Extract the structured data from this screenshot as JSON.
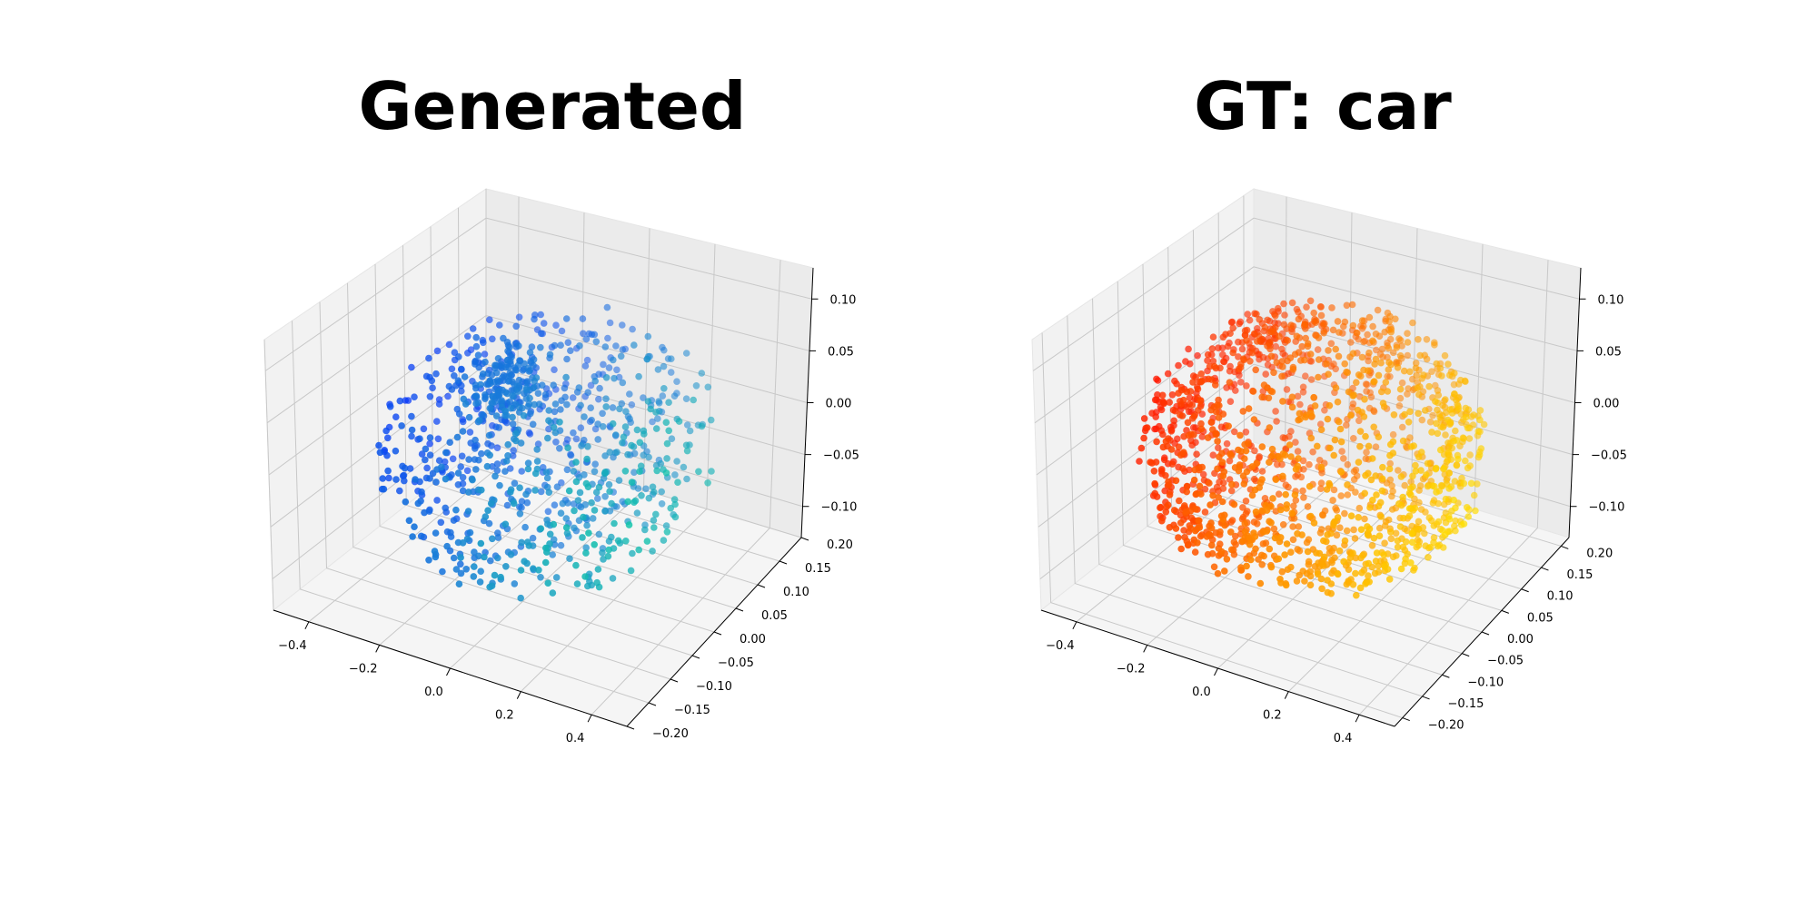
{
  "chart_data": [
    {
      "type": "scatter3d",
      "title": "Generated",
      "colormap": "winter",
      "point_colors": [
        "#0028ff",
        "#1f8fd0",
        "#00ff80"
      ],
      "point_count": 900,
      "xlim": [
        -0.5,
        0.5
      ],
      "ylim": [
        -0.2,
        0.2
      ],
      "zlim": [
        -0.13,
        0.13
      ],
      "x_ticks": [
        -0.4,
        -0.2,
        0.0,
        0.2,
        0.4
      ],
      "y_ticks": [
        -0.2,
        -0.15,
        -0.1,
        -0.05,
        0.0,
        0.05,
        0.1,
        0.15,
        0.2
      ],
      "z_ticks": [
        -0.1,
        -0.05,
        0.0,
        0.05,
        0.1
      ],
      "x_tick_labels": [
        "−0.4",
        "−0.2",
        "0.0",
        "0.2",
        "0.4"
      ],
      "y_tick_labels": [
        "−0.20",
        "−0.15",
        "−0.10",
        "−0.05",
        "0.00",
        "0.05",
        "0.10",
        "0.15",
        "0.20"
      ],
      "z_tick_labels": [
        "−0.10",
        "−0.05",
        "0.00",
        "0.05",
        "0.10"
      ],
      "point_cloud": {
        "shape": "ellipsoid",
        "center": [
          0.0,
          0.0,
          0.0
        ],
        "half_extent": [
          0.42,
          0.2,
          0.11
        ],
        "dense_cluster_center": [
          -0.05,
          -0.05,
          0.09
        ]
      },
      "grid": true
    },
    {
      "type": "scatter3d",
      "title": "GT: car",
      "colormap": "autumn",
      "point_colors": [
        "#ff0000",
        "#ff8000",
        "#ffff00"
      ],
      "point_count": 1500,
      "xlim": [
        -0.5,
        0.5
      ],
      "ylim": [
        -0.22,
        0.22
      ],
      "zlim": [
        -0.13,
        0.13
      ],
      "x_ticks": [
        -0.4,
        -0.2,
        0.0,
        0.2,
        0.4
      ],
      "y_ticks": [
        -0.2,
        -0.15,
        -0.1,
        -0.05,
        0.0,
        0.05,
        0.1,
        0.15,
        0.2
      ],
      "z_ticks": [
        -0.1,
        -0.05,
        0.0,
        0.05,
        0.1
      ],
      "x_tick_labels": [
        "−0.4",
        "−0.2",
        "0.0",
        "0.2",
        "0.4"
      ],
      "y_tick_labels": [
        "−0.20",
        "−0.15",
        "−0.10",
        "−0.05",
        "0.00",
        "0.05",
        "0.10",
        "0.15",
        "0.20"
      ],
      "z_tick_labels": [
        "−0.10",
        "−0.05",
        "0.00",
        "0.05",
        "0.10"
      ],
      "point_cloud": {
        "shape": "car-like elongated body",
        "center": [
          0.0,
          0.0,
          0.0
        ],
        "half_extent": [
          0.45,
          0.2,
          0.12
        ]
      },
      "grid": true
    }
  ]
}
